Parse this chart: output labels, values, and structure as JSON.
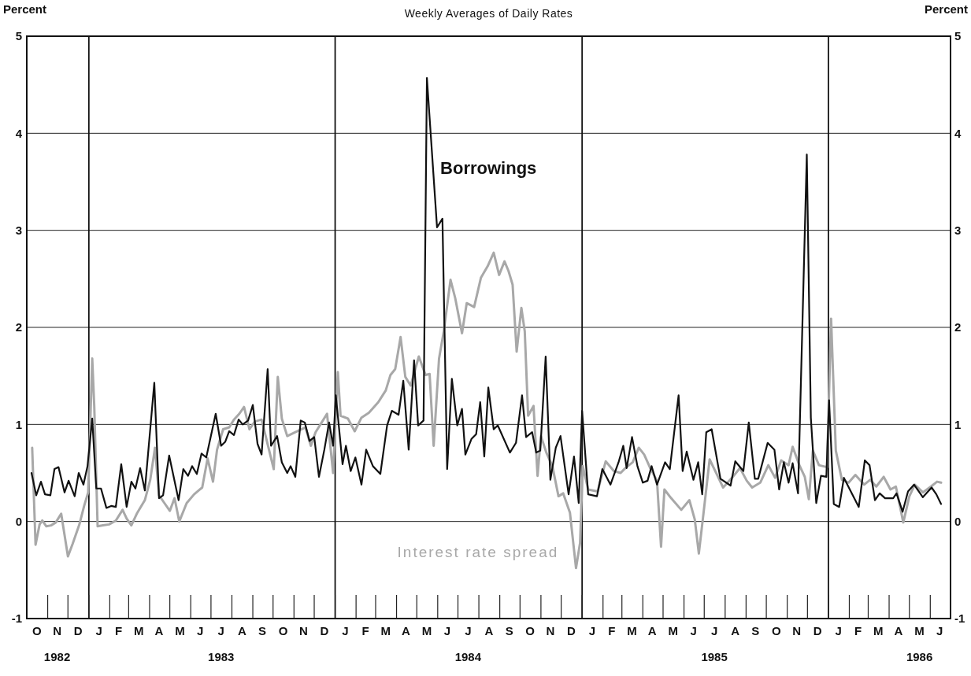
{
  "chart_data": {
    "type": "line",
    "title": "Weekly Averages of Daily Rates",
    "ylabel": "Percent",
    "y2label": "Percent",
    "xlim": [
      "1982-10-01",
      "1986-07-01"
    ],
    "xticks": [
      {
        "value": "1982-10-16",
        "label": "O"
      },
      {
        "value": "1982-11-15",
        "label": "N\n1982"
      },
      {
        "value": "1982-12-16",
        "label": "D"
      },
      {
        "value": "1983-01-16",
        "label": "J"
      },
      {
        "value": "1983-02-14",
        "label": "F"
      },
      {
        "value": "1983-03-16",
        "label": "M"
      },
      {
        "value": "1983-04-15",
        "label": "A"
      },
      {
        "value": "1983-05-16",
        "label": "M"
      },
      {
        "value": "1983-06-15",
        "label": "J"
      },
      {
        "value": "1983-07-16",
        "label": "J\n1983"
      },
      {
        "value": "1983-08-16",
        "label": "A"
      },
      {
        "value": "1983-09-15",
        "label": "S"
      },
      {
        "value": "1983-10-16",
        "label": "O"
      },
      {
        "value": "1983-11-15",
        "label": "N"
      },
      {
        "value": "1983-12-16",
        "label": "D"
      },
      {
        "value": "1984-01-16",
        "label": "J"
      },
      {
        "value": "1984-02-15",
        "label": "F"
      },
      {
        "value": "1984-03-16",
        "label": "M"
      },
      {
        "value": "1984-04-15",
        "label": "A"
      },
      {
        "value": "1984-05-16",
        "label": "M"
      },
      {
        "value": "1984-06-15",
        "label": "J"
      },
      {
        "value": "1984-07-16",
        "label": "J\n1984"
      },
      {
        "value": "1984-08-16",
        "label": "A"
      },
      {
        "value": "1984-09-15",
        "label": "S"
      },
      {
        "value": "1984-10-16",
        "label": "O"
      },
      {
        "value": "1984-11-15",
        "label": "N"
      },
      {
        "value": "1984-12-16",
        "label": "D"
      },
      {
        "value": "1985-01-16",
        "label": "J"
      },
      {
        "value": "1985-02-14",
        "label": "F"
      },
      {
        "value": "1985-03-16",
        "label": "M"
      },
      {
        "value": "1985-04-15",
        "label": "A"
      },
      {
        "value": "1985-05-16",
        "label": "M"
      },
      {
        "value": "1985-06-15",
        "label": "J"
      },
      {
        "value": "1985-07-16",
        "label": "J\n1985"
      },
      {
        "value": "1985-08-16",
        "label": "A"
      },
      {
        "value": "1985-09-15",
        "label": "S"
      },
      {
        "value": "1985-10-16",
        "label": "O"
      },
      {
        "value": "1985-11-15",
        "label": "N"
      },
      {
        "value": "1985-12-16",
        "label": "D"
      },
      {
        "value": "1986-01-16",
        "label": "J"
      },
      {
        "value": "1986-02-14",
        "label": "F"
      },
      {
        "value": "1986-03-16",
        "label": "M"
      },
      {
        "value": "1986-04-15",
        "label": "A"
      },
      {
        "value": "1986-05-16",
        "label": "M\n1986"
      },
      {
        "value": "1986-06-15",
        "label": "J"
      }
    ],
    "ylim": [
      -1,
      5
    ],
    "yticks": [
      -1,
      0,
      1,
      2,
      3,
      4,
      5
    ],
    "y2lim": [
      -1,
      5
    ],
    "y2ticks": [
      -1,
      0,
      1,
      2,
      3,
      4,
      5
    ],
    "grid": "y",
    "legend": false,
    "ref_lines": [
      {
        "axis": "x",
        "value": "1983-01-01",
        "color": "#111111"
      },
      {
        "axis": "x",
        "value": "1984-01-01",
        "color": "#111111"
      },
      {
        "axis": "x",
        "value": "1985-01-01",
        "color": "#111111"
      },
      {
        "axis": "x",
        "value": "1986-01-01",
        "color": "#111111"
      }
    ],
    "series": [
      {
        "name": "Interest rate spread",
        "color": "#a8a8a8",
        "x": [
          "1982-10-09",
          "1982-10-14",
          "1982-10-20",
          "1982-10-24",
          "1982-10-30",
          "1982-11-06",
          "1982-11-13",
          "1982-11-21",
          "1982-12-01",
          "1982-12-08",
          "1982-12-18",
          "1982-12-25",
          "1982-12-31",
          "1983-01-06",
          "1983-01-09",
          "1983-01-14",
          "1983-01-22",
          "1983-01-31",
          "1983-02-10",
          "1983-02-20",
          "1983-02-26",
          "1983-03-05",
          "1983-03-13",
          "1983-03-25",
          "1983-04-02",
          "1983-04-09",
          "1983-04-15",
          "1983-04-23",
          "1983-05-01",
          "1983-05-08",
          "1983-05-15",
          "1983-05-26",
          "1983-06-06",
          "1983-06-18",
          "1983-06-26",
          "1983-07-04",
          "1983-07-10",
          "1983-07-19",
          "1983-07-28",
          "1983-08-04",
          "1983-08-12",
          "1983-08-19",
          "1983-08-27",
          "1983-09-04",
          "1983-09-14",
          "1983-10-02",
          "1983-10-08",
          "1983-10-14",
          "1983-10-22",
          "1983-11-03",
          "1983-11-18",
          "1983-11-26",
          "1983-12-03",
          "1983-12-12",
          "1983-12-20",
          "1983-12-29",
          "1984-01-05",
          "1984-01-09",
          "1984-01-20",
          "1984-01-30",
          "1984-02-09",
          "1984-02-20",
          "1984-03-05",
          "1984-03-16",
          "1984-03-23",
          "1984-03-30",
          "1984-04-07",
          "1984-04-14",
          "1984-04-22",
          "1984-05-04",
          "1984-05-14",
          "1984-05-20",
          "1984-05-26",
          "1984-06-03",
          "1984-06-10",
          "1984-06-20",
          "1984-06-27",
          "1984-07-07",
          "1984-07-14",
          "1984-07-25",
          "1984-08-04",
          "1984-08-14",
          "1984-08-23",
          "1984-08-31",
          "1984-09-08",
          "1984-09-14",
          "1984-09-20",
          "1984-09-26",
          "1984-10-03",
          "1984-10-08",
          "1984-10-13",
          "1984-10-21",
          "1984-10-27",
          "1984-11-01",
          "1984-11-09",
          "1984-11-18",
          "1984-11-27",
          "1984-12-04",
          "1984-12-14",
          "1984-12-23",
          "1984-12-29",
          "1985-01-02",
          "1985-01-10",
          "1985-01-24",
          "1985-02-05",
          "1985-02-17",
          "1985-02-27",
          "1985-03-06",
          "1985-03-17",
          "1985-03-26",
          "1985-04-03",
          "1985-04-12",
          "1985-04-22",
          "1985-04-28",
          "1985-05-03",
          "1985-05-13",
          "1985-05-28",
          "1985-06-09",
          "1985-06-17",
          "1985-06-23",
          "1985-06-30",
          "1985-07-09",
          "1985-07-20",
          "1985-07-29",
          "1985-08-11",
          "1985-08-23",
          "1985-09-02",
          "1985-09-10",
          "1985-09-22",
          "1985-10-04",
          "1985-10-14",
          "1985-10-23",
          "1985-11-03",
          "1985-11-09",
          "1985-11-19",
          "1985-11-27",
          "1985-12-03",
          "1985-12-09",
          "1985-12-18",
          "1985-12-30",
          "1986-01-05",
          "1986-01-12",
          "1986-01-21",
          "1986-01-31",
          "1986-02-10",
          "1986-02-23",
          "1986-03-04",
          "1986-03-13",
          "1986-03-24",
          "1986-04-03",
          "1986-04-11",
          "1986-04-22",
          "1986-05-01",
          "1986-05-09",
          "1986-05-21",
          "1986-06-02",
          "1986-06-11",
          "1986-06-17"
        ],
        "values": [
          0.76,
          -0.24,
          -0.03,
          0.01,
          -0.05,
          -0.04,
          -0.01,
          0.08,
          -0.36,
          -0.23,
          -0.03,
          0.16,
          0.3,
          1.68,
          1.19,
          -0.05,
          -0.04,
          -0.03,
          0.01,
          0.12,
          0.03,
          -0.04,
          0.08,
          0.22,
          0.43,
          0.76,
          0.27,
          0.19,
          0.11,
          0.24,
          0.0,
          0.19,
          0.28,
          0.35,
          0.65,
          0.41,
          0.74,
          0.95,
          0.97,
          1.05,
          1.11,
          1.18,
          0.95,
          1.03,
          1.05,
          0.54,
          1.49,
          1.06,
          0.88,
          0.92,
          0.97,
          0.78,
          0.92,
          1.02,
          1.11,
          0.5,
          1.54,
          1.09,
          1.06,
          0.93,
          1.07,
          1.12,
          1.23,
          1.35,
          1.51,
          1.57,
          1.9,
          1.49,
          1.4,
          1.7,
          1.51,
          1.52,
          0.78,
          1.68,
          1.96,
          2.49,
          2.3,
          1.94,
          2.25,
          2.21,
          2.51,
          2.63,
          2.77,
          2.54,
          2.68,
          2.58,
          2.44,
          1.75,
          2.2,
          1.96,
          1.09,
          1.19,
          0.47,
          0.88,
          0.71,
          0.57,
          0.26,
          0.29,
          0.09,
          -0.48,
          -0.22,
          0.57,
          0.33,
          0.31,
          0.62,
          0.52,
          0.5,
          0.55,
          0.61,
          0.76,
          0.69,
          0.55,
          0.42,
          -0.26,
          0.33,
          0.24,
          0.12,
          0.22,
          0.02,
          -0.33,
          0.09,
          0.64,
          0.48,
          0.35,
          0.45,
          0.55,
          0.42,
          0.35,
          0.4,
          0.58,
          0.45,
          0.63,
          0.58,
          0.77,
          0.58,
          0.46,
          0.23,
          0.73,
          0.58,
          0.56,
          2.09,
          0.73,
          0.43,
          0.4,
          0.48,
          0.38,
          0.43,
          0.36,
          0.46,
          0.33,
          0.36,
          -0.01,
          0.26,
          0.38,
          0.3,
          0.36,
          0.41,
          0.4
        ]
      },
      {
        "name": "Borrowings",
        "color": "#111111",
        "x": [
          "1982-10-08",
          "1982-10-15",
          "1982-10-22",
          "1982-10-28",
          "1982-11-05",
          "1982-11-11",
          "1982-11-17",
          "1982-11-26",
          "1982-12-02",
          "1982-12-11",
          "1982-12-17",
          "1982-12-24",
          "1982-12-30",
          "1983-01-06",
          "1983-01-12",
          "1983-01-19",
          "1983-01-27",
          "1983-02-03",
          "1983-02-10",
          "1983-02-18",
          "1983-02-26",
          "1983-03-05",
          "1983-03-11",
          "1983-03-18",
          "1983-03-25",
          "1983-04-08",
          "1983-04-15",
          "1983-04-21",
          "1983-04-30",
          "1983-05-14",
          "1983-05-21",
          "1983-05-28",
          "1983-06-03",
          "1983-06-10",
          "1983-06-17",
          "1983-06-24",
          "1983-07-08",
          "1983-07-16",
          "1983-07-22",
          "1983-07-28",
          "1983-08-04",
          "1983-08-11",
          "1983-08-17",
          "1983-08-25",
          "1983-09-01",
          "1983-09-08",
          "1983-09-14",
          "1983-09-23",
          "1983-09-28",
          "1983-10-07",
          "1983-10-14",
          "1983-10-22",
          "1983-10-27",
          "1983-11-03",
          "1983-11-11",
          "1983-11-17",
          "1983-11-24",
          "1983-12-01",
          "1983-12-08",
          "1983-12-16",
          "1983-12-23",
          "1983-12-29",
          "1984-01-02",
          "1984-01-12",
          "1984-01-17",
          "1984-01-24",
          "1984-01-31",
          "1984-02-09",
          "1984-02-16",
          "1984-02-26",
          "1984-03-08",
          "1984-03-18",
          "1984-03-25",
          "1984-04-04",
          "1984-04-11",
          "1984-04-19",
          "1984-04-27",
          "1984-05-03",
          "1984-05-11",
          "1984-05-16",
          "1984-05-31",
          "1984-06-08",
          "1984-06-15",
          "1984-06-22",
          "1984-06-30",
          "1984-07-07",
          "1984-07-12",
          "1984-07-21",
          "1984-07-28",
          "1984-08-03",
          "1984-08-09",
          "1984-08-15",
          "1984-08-23",
          "1984-08-29",
          "1984-09-16",
          "1984-09-25",
          "1984-10-04",
          "1984-10-10",
          "1984-10-19",
          "1984-10-25",
          "1984-10-31",
          "1984-11-08",
          "1984-11-15",
          "1984-11-23",
          "1984-11-30",
          "1984-12-12",
          "1984-12-20",
          "1984-12-27",
          "1985-01-01",
          "1985-01-10",
          "1985-01-23",
          "1985-01-31",
          "1985-02-12",
          "1985-02-24",
          "1985-03-03",
          "1985-03-08",
          "1985-03-16",
          "1985-03-24",
          "1985-04-01",
          "1985-04-08",
          "1985-04-14",
          "1985-04-22",
          "1985-05-04",
          "1985-05-11",
          "1985-05-24",
          "1985-05-30",
          "1985-06-05",
          "1985-06-15",
          "1985-06-22",
          "1985-06-28",
          "1985-07-04",
          "1985-07-12",
          "1985-07-25",
          "1985-08-09",
          "1985-08-16",
          "1985-08-28",
          "1985-09-05",
          "1985-09-14",
          "1985-09-19",
          "1985-10-03",
          "1985-10-13",
          "1985-10-20",
          "1985-10-27",
          "1985-11-03",
          "1985-11-09",
          "1985-11-17",
          "1985-11-30",
          "1985-12-06",
          "1985-12-14",
          "1985-12-21",
          "1985-12-29",
          "1986-01-02",
          "1986-01-09",
          "1986-01-17",
          "1986-01-24",
          "1986-02-15",
          "1986-02-24",
          "1986-03-03",
          "1986-03-11",
          "1986-03-18",
          "1986-03-26",
          "1986-04-07",
          "1986-04-12",
          "1986-04-21",
          "1986-04-29",
          "1986-05-08",
          "1986-05-21",
          "1986-06-03",
          "1986-06-10",
          "1986-06-17"
        ],
        "values": [
          0.5,
          0.27,
          0.41,
          0.28,
          0.27,
          0.54,
          0.56,
          0.3,
          0.42,
          0.26,
          0.5,
          0.38,
          0.57,
          1.06,
          0.34,
          0.34,
          0.14,
          0.16,
          0.15,
          0.59,
          0.15,
          0.41,
          0.34,
          0.55,
          0.32,
          1.43,
          0.24,
          0.27,
          0.68,
          0.22,
          0.54,
          0.47,
          0.57,
          0.49,
          0.7,
          0.66,
          1.11,
          0.78,
          0.82,
          0.93,
          0.89,
          1.05,
          1.0,
          1.04,
          1.2,
          0.8,
          0.69,
          1.57,
          0.78,
          0.88,
          0.61,
          0.5,
          0.57,
          0.46,
          1.04,
          1.02,
          0.83,
          0.87,
          0.46,
          0.74,
          1.02,
          0.78,
          1.3,
          0.59,
          0.78,
          0.52,
          0.66,
          0.38,
          0.74,
          0.57,
          0.49,
          0.99,
          1.14,
          1.1,
          1.45,
          0.74,
          1.66,
          0.99,
          1.04,
          4.57,
          3.03,
          3.12,
          0.54,
          1.47,
          0.99,
          1.16,
          0.69,
          0.85,
          0.9,
          1.23,
          0.67,
          1.38,
          0.95,
          0.99,
          0.71,
          0.81,
          1.3,
          0.87,
          0.92,
          0.71,
          0.73,
          1.7,
          0.43,
          0.76,
          0.88,
          0.28,
          0.67,
          0.19,
          1.14,
          0.28,
          0.26,
          0.54,
          0.38,
          0.61,
          0.78,
          0.55,
          0.87,
          0.57,
          0.4,
          0.42,
          0.57,
          0.38,
          0.61,
          0.54,
          1.3,
          0.52,
          0.72,
          0.43,
          0.61,
          0.28,
          0.92,
          0.95,
          0.44,
          0.37,
          0.62,
          0.52,
          1.02,
          0.44,
          0.44,
          0.81,
          0.74,
          0.33,
          0.61,
          0.4,
          0.6,
          0.29,
          3.78,
          1.07,
          0.19,
          0.47,
          0.46,
          1.25,
          0.18,
          0.15,
          0.45,
          0.15,
          0.63,
          0.58,
          0.22,
          0.29,
          0.24,
          0.24,
          0.29,
          0.1,
          0.31,
          0.38,
          0.25,
          0.35,
          0.28,
          0.18
        ]
      }
    ]
  }
}
